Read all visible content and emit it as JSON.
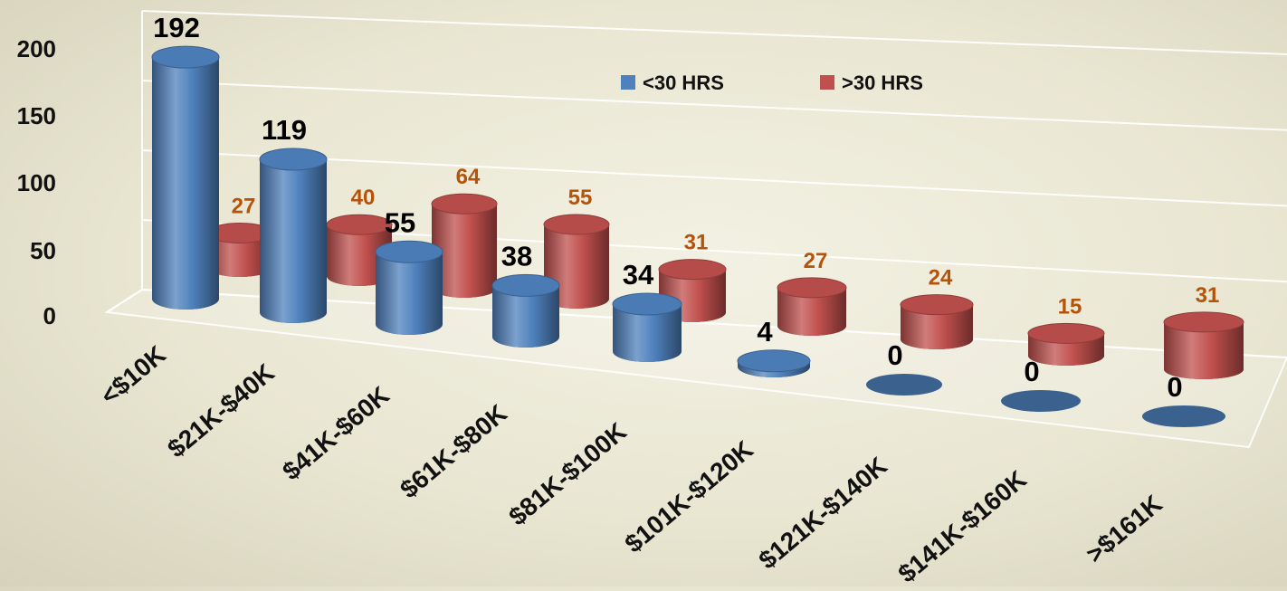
{
  "chart_data": {
    "type": "bar",
    "title": "",
    "xlabel": "",
    "ylabel": "",
    "categories": [
      "<$10K",
      "$21K-$40K",
      "$41K-$60K",
      "$61K-$80K",
      "$81K-$100K",
      "$101K-$120K",
      "$121K-$140K",
      "$141K-$160K",
      ">$161K"
    ],
    "series": [
      {
        "name": "<30 HRS",
        "values": [
          192,
          119,
          55,
          38,
          34,
          4,
          0,
          0,
          0
        ],
        "color": "#4f81bd",
        "label_color": "#000000"
      },
      {
        "name": ">30 HRS",
        "values": [
          27,
          40,
          64,
          55,
          31,
          27,
          24,
          15,
          31
        ],
        "color": "#c0504d",
        "label_color": "#b45309"
      }
    ],
    "ylim": [
      0,
      200
    ],
    "yticks": [
      0,
      50,
      100,
      150,
      200
    ],
    "grid": true,
    "legend_position": "top-center",
    "style": "3d-cylinder"
  }
}
